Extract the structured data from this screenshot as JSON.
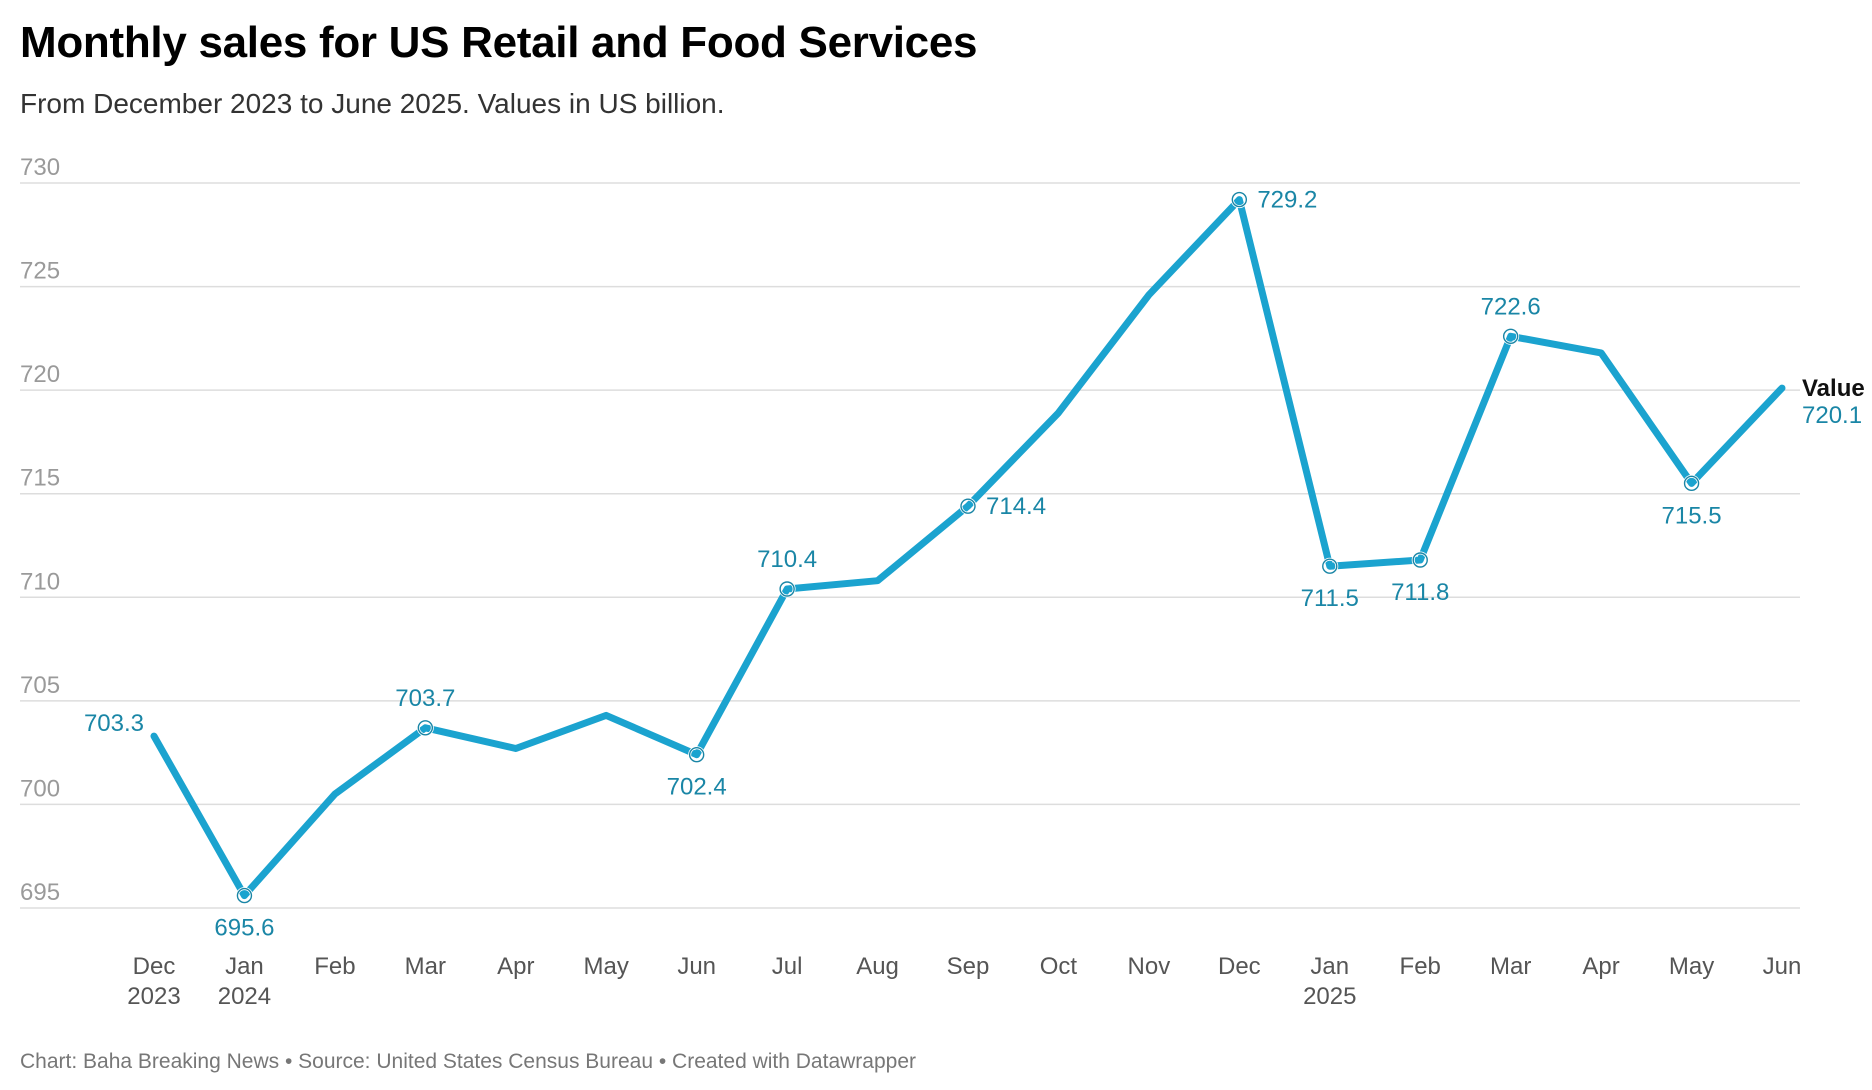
{
  "title": "Monthly sales for US Retail and Food Services",
  "subtitle": "From December 2023 to June 2025. Values in US billion.",
  "footer": "Chart: Baha Breaking News • Source: United States Census Bureau • Created with Datawrapper",
  "colors": {
    "line": "#1ba3cf",
    "label": "#1a86a6",
    "grid": "#dddddd"
  },
  "chart_data": {
    "type": "line",
    "title": "Monthly sales for US Retail and Food Services",
    "subtitle": "From December 2023 to June 2025. Values in US billion.",
    "xlabel": "",
    "ylabel": "",
    "ylim": [
      695,
      730
    ],
    "yticks": [
      695,
      700,
      705,
      710,
      715,
      720,
      725,
      730
    ],
    "grid": true,
    "legend": "none",
    "x": [
      "Dec 2023",
      "Jan 2024",
      "Feb 2024",
      "Mar 2024",
      "Apr 2024",
      "May 2024",
      "Jun 2024",
      "Jul 2024",
      "Aug 2024",
      "Sep 2024",
      "Oct 2024",
      "Nov 2024",
      "Dec 2024",
      "Jan 2025",
      "Feb 2025",
      "Mar 2025",
      "Apr 2025",
      "May 2025",
      "Jun 2025"
    ],
    "xtick_labels": [
      [
        "Dec",
        "2023"
      ],
      [
        "Jan",
        "2024"
      ],
      [
        "Feb"
      ],
      [
        "Mar"
      ],
      [
        "Apr"
      ],
      [
        "May"
      ],
      [
        "Jun"
      ],
      [
        "Jul"
      ],
      [
        "Aug"
      ],
      [
        "Sep"
      ],
      [
        "Oct"
      ],
      [
        "Nov"
      ],
      [
        "Dec"
      ],
      [
        "Jan",
        "2025"
      ],
      [
        "Feb"
      ],
      [
        "Mar"
      ],
      [
        "Apr"
      ],
      [
        "May"
      ],
      [
        "Jun"
      ]
    ],
    "series": [
      {
        "name": "Value",
        "values": [
          703.3,
          695.6,
          700.5,
          703.7,
          702.7,
          704.3,
          702.4,
          710.4,
          710.8,
          714.4,
          718.9,
          724.6,
          729.2,
          711.5,
          711.8,
          722.6,
          721.8,
          715.5,
          720.1
        ],
        "labeled_points": [
          {
            "index": 0,
            "label": "703.3",
            "position": "left"
          },
          {
            "index": 1,
            "label": "695.6",
            "position": "below"
          },
          {
            "index": 3,
            "label": "703.7",
            "position": "above"
          },
          {
            "index": 6,
            "label": "702.4",
            "position": "below"
          },
          {
            "index": 7,
            "label": "710.4",
            "position": "above"
          },
          {
            "index": 9,
            "label": "714.4",
            "position": "right"
          },
          {
            "index": 12,
            "label": "729.2",
            "position": "right"
          },
          {
            "index": 13,
            "label": "711.5",
            "position": "below"
          },
          {
            "index": 14,
            "label": "711.8",
            "position": "below"
          },
          {
            "index": 15,
            "label": "722.6",
            "position": "above"
          },
          {
            "index": 17,
            "label": "715.5",
            "position": "below"
          },
          {
            "index": 18,
            "label": "720.1",
            "position": "end"
          }
        ]
      }
    ]
  }
}
